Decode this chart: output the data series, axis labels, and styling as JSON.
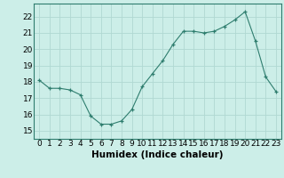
{
  "x": [
    0,
    1,
    2,
    3,
    4,
    5,
    6,
    7,
    8,
    9,
    10,
    11,
    12,
    13,
    14,
    15,
    16,
    17,
    18,
    19,
    20,
    21,
    22,
    23
  ],
  "y": [
    18.1,
    17.6,
    17.6,
    17.5,
    17.2,
    15.9,
    15.4,
    15.4,
    15.6,
    16.3,
    17.7,
    18.5,
    19.3,
    20.3,
    21.1,
    21.1,
    21.0,
    21.1,
    21.4,
    21.8,
    22.3,
    20.5,
    18.3,
    17.4
  ],
  "line_color": "#2e7d6e",
  "bg_color": "#cceee8",
  "grid_color": "#b0d8d2",
  "xlabel": "Humidex (Indice chaleur)",
  "ylim": [
    14.5,
    22.8
  ],
  "xlim": [
    -0.5,
    23.5
  ],
  "yticks": [
    15,
    16,
    17,
    18,
    19,
    20,
    21,
    22
  ],
  "xticks": [
    0,
    1,
    2,
    3,
    4,
    5,
    6,
    7,
    8,
    9,
    10,
    11,
    12,
    13,
    14,
    15,
    16,
    17,
    18,
    19,
    20,
    21,
    22,
    23
  ],
  "label_fontsize": 7.5,
  "tick_fontsize": 6.5
}
